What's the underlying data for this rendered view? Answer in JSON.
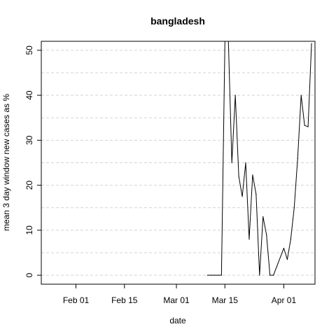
{
  "chart_data": {
    "type": "line",
    "title": "bangladesh",
    "xlabel": "date",
    "ylabel": "mean  3  day window new cases as %",
    "x_range": [
      "2020-01-22",
      "2020-04-10"
    ],
    "ylim": [
      -2,
      52
    ],
    "y_ticks": [
      0,
      10,
      20,
      30,
      40,
      50
    ],
    "x_ticks": [
      {
        "date": "2020-02-01",
        "label": "Feb 01"
      },
      {
        "date": "2020-02-15",
        "label": "Feb 15"
      },
      {
        "date": "2020-03-01",
        "label": "Mar 01"
      },
      {
        "date": "2020-03-15",
        "label": "Mar 15"
      },
      {
        "date": "2020-04-01",
        "label": "Apr 01"
      }
    ],
    "grid": true,
    "series": [
      {
        "color": "#000000",
        "points": [
          {
            "x": "2020-03-10",
            "y": 0
          },
          {
            "x": "2020-03-11",
            "y": 0
          },
          {
            "x": "2020-03-12",
            "y": 0
          },
          {
            "x": "2020-03-13",
            "y": 0
          },
          {
            "x": "2020-03-14",
            "y": 0
          },
          {
            "x": "2020-03-15",
            "y": 52
          },
          {
            "x": "2020-03-16",
            "y": 52
          },
          {
            "x": "2020-03-17",
            "y": 25
          },
          {
            "x": "2020-03-18",
            "y": 40
          },
          {
            "x": "2020-03-19",
            "y": 22
          },
          {
            "x": "2020-03-20",
            "y": 17.5
          },
          {
            "x": "2020-03-21",
            "y": 25
          },
          {
            "x": "2020-03-22",
            "y": 8
          },
          {
            "x": "2020-03-23",
            "y": 22.3
          },
          {
            "x": "2020-03-24",
            "y": 18
          },
          {
            "x": "2020-03-25",
            "y": 0
          },
          {
            "x": "2020-03-26",
            "y": 13
          },
          {
            "x": "2020-03-27",
            "y": 9
          },
          {
            "x": "2020-03-28",
            "y": 0
          },
          {
            "x": "2020-03-29",
            "y": 0
          },
          {
            "x": "2020-03-30",
            "y": 2
          },
          {
            "x": "2020-03-31",
            "y": 4
          },
          {
            "x": "2020-04-01",
            "y": 6
          },
          {
            "x": "2020-04-02",
            "y": 3.5
          },
          {
            "x": "2020-04-03",
            "y": 8
          },
          {
            "x": "2020-04-04",
            "y": 15
          },
          {
            "x": "2020-04-05",
            "y": 26
          },
          {
            "x": "2020-04-06",
            "y": 40
          },
          {
            "x": "2020-04-07",
            "y": 33.3
          },
          {
            "x": "2020-04-08",
            "y": 33
          },
          {
            "x": "2020-04-09",
            "y": 51.5
          }
        ]
      }
    ]
  }
}
